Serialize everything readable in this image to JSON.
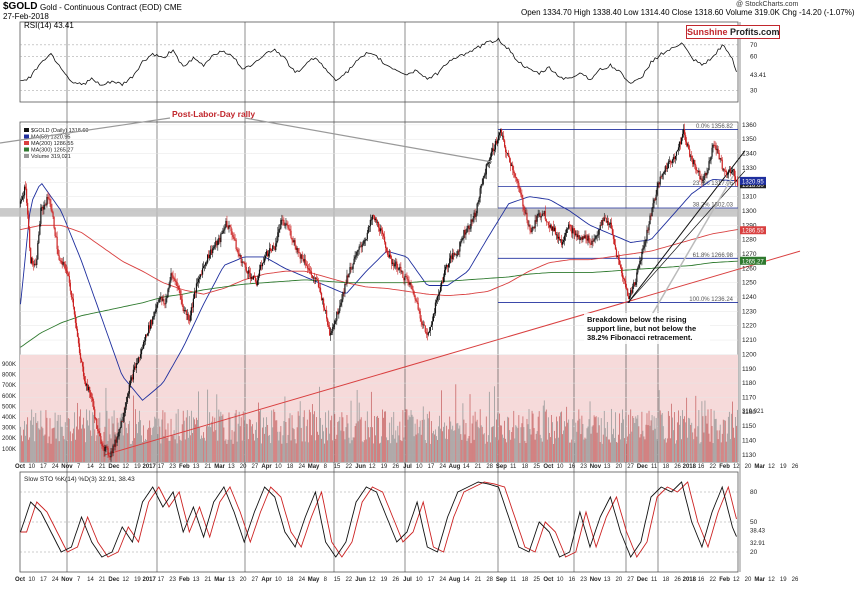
{
  "header": {
    "symbol": "$GOLD",
    "description": "Gold - Continuous Contract (EOD) CME",
    "date": "27-Feb-2018",
    "ohlc": "Open 1334.70  High 1338.40  Low 1314.40  Close 1318.60  Volume 319.0K  Chg -14.20 (-1.07%)",
    "credit": "@ StockCharts.com",
    "rsi_label": "RSI(14) 43.41",
    "brand_left": "Sunshine",
    "brand_right": "Profits.com"
  },
  "legend": {
    "price": "$GOLD (Daily) 1318.60",
    "ma50": "MA(50) 1320.95",
    "ma200": "MA(200) 1286.55",
    "ma300": "MA(300) 1265.27",
    "volume": "Volume 319,021"
  },
  "annotations": {
    "rally": "Post-Labor-Day rally",
    "breakdown_line1": "Breakdown below the rising",
    "breakdown_line2": "support line, but not below the",
    "breakdown_line3": "38.2% Fibonacci retracement."
  },
  "stoch_label": "Slow STO %K(14) %D(3) 32.91, 38.43",
  "colors": {
    "up": "#111111",
    "down": "#cc2222",
    "fib": "#1f2f9e",
    "ma50": "#1f2f9e",
    "ma200": "#d94040",
    "ma300": "#2f7a2f",
    "volume_zone": "#f6dada",
    "brand": "#c1272d"
  },
  "chart_data": {
    "type": "candlestick",
    "price_axis": {
      "min": 1125,
      "max": 1362,
      "ticks": [
        1130,
        1140,
        1150,
        1160,
        1170,
        1180,
        1190,
        1200,
        1210,
        1220,
        1230,
        1240,
        1250,
        1260,
        1270,
        1280,
        1290,
        1300,
        1310,
        1320,
        1330,
        1340,
        1350,
        1360
      ],
      "last_labels": [
        "1318.60",
        "1320.95",
        "1286.55",
        "1265.27"
      ]
    },
    "rsi_axis": {
      "ticks": [
        70,
        60,
        43.41,
        30
      ]
    },
    "volume_axis": {
      "ticks": [
        "900K",
        "800K",
        "700K",
        "600K",
        "500K",
        "400K",
        "300K",
        "200K",
        "100K"
      ],
      "last": "319,021"
    },
    "stoch_axis": {
      "ticks": [
        80,
        50,
        20
      ],
      "last": [
        "38.43",
        "32.91"
      ]
    },
    "x_axis_labels": [
      "Oct",
      "10",
      "17",
      "24",
      "Nov",
      "7",
      "14",
      "21",
      "Dec",
      "12",
      "19",
      "2017",
      "17",
      "23",
      "Feb",
      "13",
      "21",
      "Mar",
      "13",
      "20",
      "27",
      "Apr",
      "10",
      "18",
      "24",
      "May",
      "8",
      "15",
      "22",
      "Jun",
      "12",
      "19",
      "26",
      "Jul",
      "10",
      "17",
      "24",
      "Aug",
      "14",
      "21",
      "28",
      "Sep",
      "11",
      "18",
      "25",
      "Oct",
      "10",
      "16",
      "23",
      "Nov",
      "13",
      "20",
      "27",
      "Dec",
      "11",
      "18",
      "26",
      "2018",
      "16",
      "22",
      "Feb",
      "12",
      "20",
      "Mar",
      "12",
      "19",
      "26"
    ],
    "price_anchors": [
      [
        0,
        1305
      ],
      [
        5,
        1318
      ],
      [
        10,
        1266
      ],
      [
        15,
        1260
      ],
      [
        20,
        1300
      ],
      [
        28,
        1310
      ],
      [
        33,
        1290
      ],
      [
        38,
        1265
      ],
      [
        45,
        1260
      ],
      [
        52,
        1235
      ],
      [
        58,
        1200
      ],
      [
        64,
        1180
      ],
      [
        70,
        1170
      ],
      [
        76,
        1145
      ],
      [
        82,
        1135
      ],
      [
        88,
        1130
      ],
      [
        94,
        1140
      ],
      [
        100,
        1155
      ],
      [
        106,
        1175
      ],
      [
        112,
        1190
      ],
      [
        118,
        1200
      ],
      [
        124,
        1215
      ],
      [
        130,
        1225
      ],
      [
        136,
        1240
      ],
      [
        142,
        1235
      ],
      [
        148,
        1255
      ],
      [
        154,
        1250
      ],
      [
        160,
        1232
      ],
      [
        166,
        1225
      ],
      [
        172,
        1245
      ],
      [
        178,
        1258
      ],
      [
        184,
        1268
      ],
      [
        190,
        1275
      ],
      [
        196,
        1280
      ],
      [
        202,
        1292
      ],
      [
        208,
        1285
      ],
      [
        214,
        1270
      ],
      [
        220,
        1262
      ],
      [
        226,
        1255
      ],
      [
        232,
        1250
      ],
      [
        238,
        1265
      ],
      [
        244,
        1272
      ],
      [
        250,
        1275
      ],
      [
        256,
        1292
      ],
      [
        262,
        1290
      ],
      [
        268,
        1280
      ],
      [
        274,
        1270
      ],
      [
        280,
        1265
      ],
      [
        286,
        1255
      ],
      [
        292,
        1250
      ],
      [
        298,
        1235
      ],
      [
        304,
        1215
      ],
      [
        310,
        1225
      ],
      [
        316,
        1240
      ],
      [
        322,
        1256
      ],
      [
        328,
        1265
      ],
      [
        334,
        1275
      ],
      [
        340,
        1282
      ],
      [
        346,
        1296
      ],
      [
        352,
        1290
      ],
      [
        358,
        1278
      ],
      [
        364,
        1265
      ],
      [
        370,
        1262
      ],
      [
        376,
        1255
      ],
      [
        382,
        1250
      ],
      [
        388,
        1240
      ],
      [
        394,
        1225
      ],
      [
        400,
        1212
      ],
      [
        406,
        1228
      ],
      [
        412,
        1245
      ],
      [
        418,
        1260
      ],
      [
        424,
        1268
      ],
      [
        430,
        1272
      ],
      [
        436,
        1285
      ],
      [
        442,
        1290
      ],
      [
        448,
        1300
      ],
      [
        454,
        1320
      ],
      [
        460,
        1335
      ],
      [
        466,
        1345
      ],
      [
        472,
        1355
      ],
      [
        478,
        1340
      ],
      [
        484,
        1330
      ],
      [
        490,
        1315
      ],
      [
        496,
        1300
      ],
      [
        502,
        1285
      ],
      [
        508,
        1295
      ],
      [
        514,
        1300
      ],
      [
        520,
        1290
      ],
      [
        526,
        1285
      ],
      [
        532,
        1278
      ],
      [
        538,
        1290
      ],
      [
        544,
        1285
      ],
      [
        550,
        1280
      ],
      [
        556,
        1282
      ],
      [
        562,
        1278
      ],
      [
        568,
        1285
      ],
      [
        574,
        1295
      ],
      [
        580,
        1290
      ],
      [
        586,
        1270
      ],
      [
        592,
        1255
      ],
      [
        598,
        1240
      ],
      [
        604,
        1250
      ],
      [
        610,
        1268
      ],
      [
        616,
        1285
      ],
      [
        622,
        1305
      ],
      [
        628,
        1320
      ],
      [
        634,
        1330
      ],
      [
        640,
        1335
      ],
      [
        646,
        1342
      ],
      [
        652,
        1355
      ],
      [
        658,
        1340
      ],
      [
        664,
        1330
      ],
      [
        670,
        1322
      ],
      [
        676,
        1330
      ],
      [
        682,
        1348
      ],
      [
        688,
        1335
      ],
      [
        694,
        1325
      ],
      [
        700,
        1330
      ],
      [
        705,
        1318
      ]
    ],
    "ma50_anchors": [
      [
        0,
        1235
      ],
      [
        10,
        1305
      ],
      [
        20,
        1320
      ],
      [
        40,
        1300
      ],
      [
        60,
        1265
      ],
      [
        80,
        1225
      ],
      [
        100,
        1185
      ],
      [
        120,
        1168
      ],
      [
        140,
        1180
      ],
      [
        160,
        1205
      ],
      [
        180,
        1235
      ],
      [
        200,
        1262
      ],
      [
        220,
        1268
      ],
      [
        240,
        1268
      ],
      [
        260,
        1260
      ],
      [
        280,
        1254
      ],
      [
        300,
        1248
      ],
      [
        320,
        1242
      ],
      [
        340,
        1258
      ],
      [
        360,
        1272
      ],
      [
        380,
        1268
      ],
      [
        400,
        1248
      ],
      [
        420,
        1248
      ],
      [
        440,
        1258
      ],
      [
        460,
        1282
      ],
      [
        480,
        1305
      ],
      [
        500,
        1310
      ],
      [
        520,
        1308
      ],
      [
        540,
        1300
      ],
      [
        560,
        1290
      ],
      [
        580,
        1284
      ],
      [
        600,
        1278
      ],
      [
        620,
        1280
      ],
      [
        640,
        1296
      ],
      [
        660,
        1312
      ],
      [
        680,
        1322
      ],
      [
        705,
        1321
      ]
    ],
    "ma200_anchors": [
      [
        0,
        1287
      ],
      [
        20,
        1290
      ],
      [
        40,
        1290
      ],
      [
        60,
        1285
      ],
      [
        80,
        1275
      ],
      [
        100,
        1265
      ],
      [
        120,
        1258
      ],
      [
        140,
        1250
      ],
      [
        160,
        1245
      ],
      [
        180,
        1242
      ],
      [
        200,
        1246
      ],
      [
        220,
        1252
      ],
      [
        240,
        1256
      ],
      [
        260,
        1258
      ],
      [
        280,
        1258
      ],
      [
        300,
        1254
      ],
      [
        320,
        1250
      ],
      [
        340,
        1247
      ],
      [
        360,
        1246
      ],
      [
        380,
        1244
      ],
      [
        400,
        1242
      ],
      [
        420,
        1241
      ],
      [
        440,
        1242
      ],
      [
        460,
        1244
      ],
      [
        480,
        1250
      ],
      [
        500,
        1258
      ],
      [
        520,
        1264
      ],
      [
        540,
        1266
      ],
      [
        560,
        1266
      ],
      [
        580,
        1268
      ],
      [
        600,
        1270
      ],
      [
        620,
        1272
      ],
      [
        640,
        1276
      ],
      [
        660,
        1280
      ],
      [
        680,
        1284
      ],
      [
        705,
        1287
      ]
    ],
    "ma300_anchors": [
      [
        0,
        1205
      ],
      [
        20,
        1215
      ],
      [
        40,
        1222
      ],
      [
        60,
        1227
      ],
      [
        80,
        1230
      ],
      [
        100,
        1233
      ],
      [
        120,
        1236
      ],
      [
        140,
        1240
      ],
      [
        160,
        1242
      ],
      [
        180,
        1245
      ],
      [
        200,
        1247
      ],
      [
        220,
        1249
      ],
      [
        240,
        1250
      ],
      [
        260,
        1251
      ],
      [
        280,
        1252
      ],
      [
        300,
        1251
      ],
      [
        320,
        1250
      ],
      [
        340,
        1250
      ],
      [
        360,
        1250
      ],
      [
        380,
        1250
      ],
      [
        400,
        1251
      ],
      [
        420,
        1251
      ],
      [
        440,
        1252
      ],
      [
        460,
        1253
      ],
      [
        480,
        1254
      ],
      [
        500,
        1256
      ],
      [
        520,
        1257
      ],
      [
        540,
        1257
      ],
      [
        560,
        1257
      ],
      [
        580,
        1258
      ],
      [
        600,
        1259
      ],
      [
        620,
        1260
      ],
      [
        640,
        1261
      ],
      [
        660,
        1262
      ],
      [
        680,
        1264
      ],
      [
        705,
        1265
      ]
    ],
    "fibonacci": {
      "levels": [
        "0.0% 1356.82",
        "23.6% 1317.06",
        "38.2% 1302.03",
        "61.8% 1266.98",
        "100.0% 1236.24"
      ],
      "values": [
        1356.82,
        1317.06,
        1302.03,
        1266.98,
        1236.24
      ]
    },
    "horizontal_band": {
      "low": 1296,
      "high": 1302
    },
    "rsi_anchors": [
      [
        0,
        38
      ],
      [
        10,
        42
      ],
      [
        20,
        55
      ],
      [
        30,
        62
      ],
      [
        40,
        50
      ],
      [
        50,
        38
      ],
      [
        60,
        35
      ],
      [
        70,
        40
      ],
      [
        80,
        34
      ],
      [
        90,
        38
      ],
      [
        100,
        35
      ],
      [
        110,
        42
      ],
      [
        120,
        55
      ],
      [
        130,
        62
      ],
      [
        140,
        58
      ],
      [
        150,
        66
      ],
      [
        160,
        50
      ],
      [
        170,
        58
      ],
      [
        180,
        52
      ],
      [
        190,
        62
      ],
      [
        200,
        65
      ],
      [
        210,
        58
      ],
      [
        220,
        48
      ],
      [
        230,
        55
      ],
      [
        240,
        62
      ],
      [
        250,
        66
      ],
      [
        260,
        58
      ],
      [
        270,
        45
      ],
      [
        280,
        52
      ],
      [
        290,
        60
      ],
      [
        300,
        48
      ],
      [
        310,
        40
      ],
      [
        320,
        45
      ],
      [
        330,
        55
      ],
      [
        340,
        62
      ],
      [
        350,
        60
      ],
      [
        360,
        52
      ],
      [
        370,
        48
      ],
      [
        380,
        44
      ],
      [
        390,
        48
      ],
      [
        400,
        40
      ],
      [
        410,
        45
      ],
      [
        420,
        55
      ],
      [
        430,
        60
      ],
      [
        440,
        62
      ],
      [
        450,
        68
      ],
      [
        460,
        72
      ],
      [
        470,
        75
      ],
      [
        480,
        66
      ],
      [
        490,
        55
      ],
      [
        500,
        48
      ],
      [
        510,
        45
      ],
      [
        520,
        50
      ],
      [
        530,
        42
      ],
      [
        540,
        40
      ],
      [
        550,
        46
      ],
      [
        560,
        40
      ],
      [
        570,
        48
      ],
      [
        580,
        52
      ],
      [
        590,
        46
      ],
      [
        600,
        36
      ],
      [
        610,
        40
      ],
      [
        620,
        55
      ],
      [
        630,
        62
      ],
      [
        640,
        66
      ],
      [
        650,
        72
      ],
      [
        660,
        58
      ],
      [
        670,
        52
      ],
      [
        680,
        58
      ],
      [
        690,
        70
      ],
      [
        700,
        58
      ],
      [
        705,
        43
      ]
    ],
    "stoch_k_anchors": [
      [
        0,
        40
      ],
      [
        10,
        70
      ],
      [
        20,
        60
      ],
      [
        30,
        40
      ],
      [
        40,
        20
      ],
      [
        50,
        25
      ],
      [
        60,
        55
      ],
      [
        70,
        30
      ],
      [
        80,
        15
      ],
      [
        90,
        20
      ],
      [
        100,
        45
      ],
      [
        110,
        30
      ],
      [
        120,
        70
      ],
      [
        130,
        85
      ],
      [
        140,
        65
      ],
      [
        150,
        80
      ],
      [
        160,
        40
      ],
      [
        170,
        65
      ],
      [
        180,
        35
      ],
      [
        190,
        70
      ],
      [
        200,
        85
      ],
      [
        210,
        60
      ],
      [
        220,
        30
      ],
      [
        230,
        60
      ],
      [
        240,
        85
      ],
      [
        250,
        75
      ],
      [
        260,
        40
      ],
      [
        270,
        25
      ],
      [
        280,
        55
      ],
      [
        290,
        80
      ],
      [
        300,
        30
      ],
      [
        310,
        15
      ],
      [
        320,
        30
      ],
      [
        330,
        70
      ],
      [
        340,
        85
      ],
      [
        350,
        80
      ],
      [
        360,
        55
      ],
      [
        370,
        30
      ],
      [
        380,
        40
      ],
      [
        390,
        70
      ],
      [
        400,
        25
      ],
      [
        410,
        20
      ],
      [
        420,
        55
      ],
      [
        430,
        80
      ],
      [
        440,
        85
      ],
      [
        450,
        90
      ],
      [
        460,
        88
      ],
      [
        470,
        85
      ],
      [
        480,
        55
      ],
      [
        490,
        25
      ],
      [
        500,
        20
      ],
      [
        510,
        50
      ],
      [
        520,
        40
      ],
      [
        530,
        15
      ],
      [
        540,
        20
      ],
      [
        550,
        60
      ],
      [
        560,
        25
      ],
      [
        570,
        55
      ],
      [
        580,
        75
      ],
      [
        590,
        40
      ],
      [
        600,
        15
      ],
      [
        610,
        30
      ],
      [
        620,
        75
      ],
      [
        630,
        85
      ],
      [
        640,
        80
      ],
      [
        650,
        90
      ],
      [
        660,
        50
      ],
      [
        670,
        25
      ],
      [
        680,
        60
      ],
      [
        690,
        85
      ],
      [
        700,
        45
      ],
      [
        705,
        33
      ]
    ]
  }
}
